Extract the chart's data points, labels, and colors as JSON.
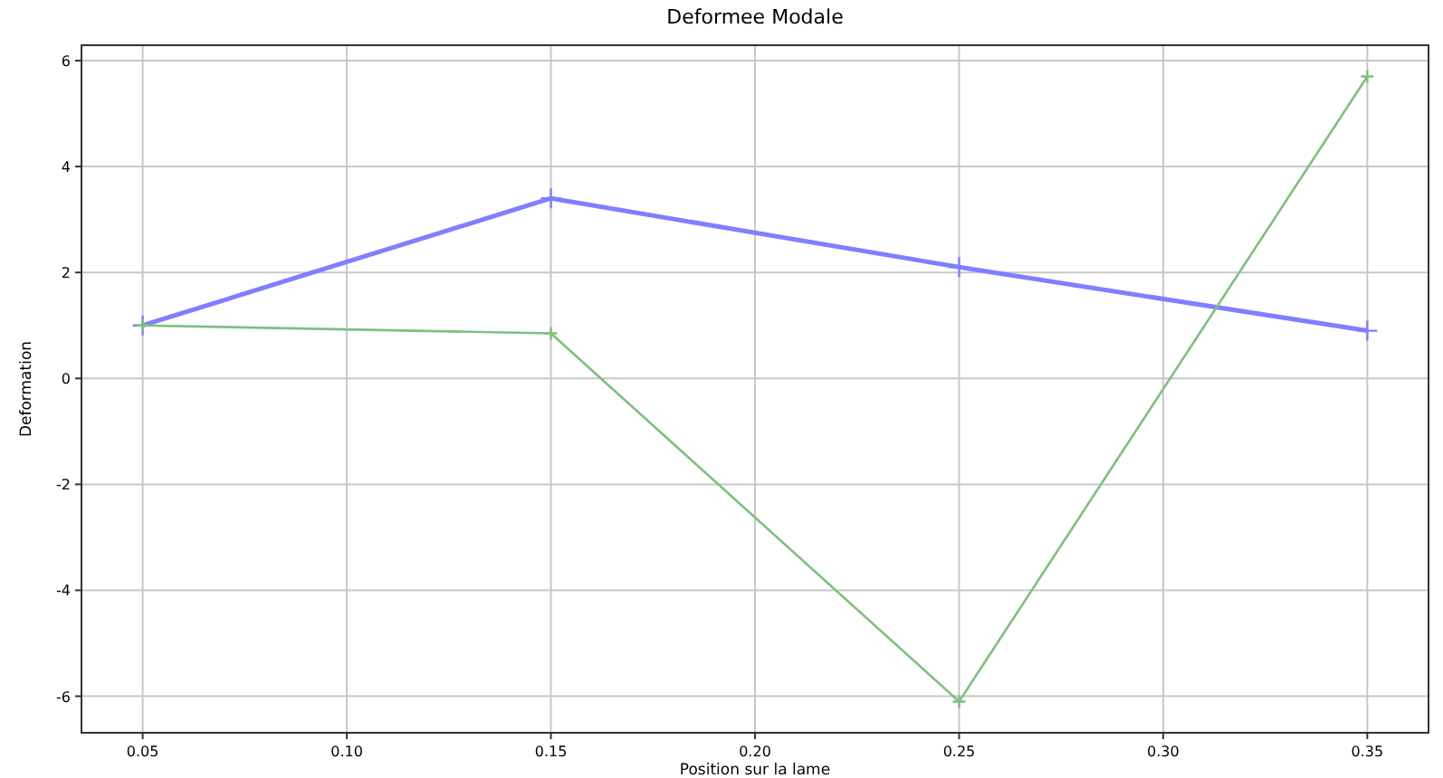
{
  "chart_data": {
    "type": "line",
    "title": "Deformee Modale",
    "xlabel": "Position sur la lame",
    "ylabel": "Deformation",
    "x": [
      0.05,
      0.15,
      0.25,
      0.35
    ],
    "series": [
      {
        "color": "#7f7fff",
        "values": [
          1.0,
          3.4,
          2.1,
          0.9
        ]
      },
      {
        "color": "#7fbf7f",
        "values": [
          1.0,
          0.85,
          -6.1,
          5.7
        ]
      }
    ],
    "xlim": [
      0.035,
      0.365
    ],
    "xticks": [
      {
        "value": 0.05,
        "label": "0.05"
      },
      {
        "value": 0.1,
        "label": "0.10"
      },
      {
        "value": 0.15,
        "label": "0.15"
      },
      {
        "value": 0.2,
        "label": "0.20"
      },
      {
        "value": 0.25,
        "label": "0.25"
      },
      {
        "value": 0.3,
        "label": "0.30"
      },
      {
        "value": 0.35,
        "label": "0.35"
      }
    ],
    "ylim": [
      -6.69,
      6.29
    ],
    "yticks": [
      -6,
      -4,
      -2,
      0,
      2,
      4,
      6
    ],
    "grid": true,
    "marker": "cross",
    "line_style": "solid"
  }
}
